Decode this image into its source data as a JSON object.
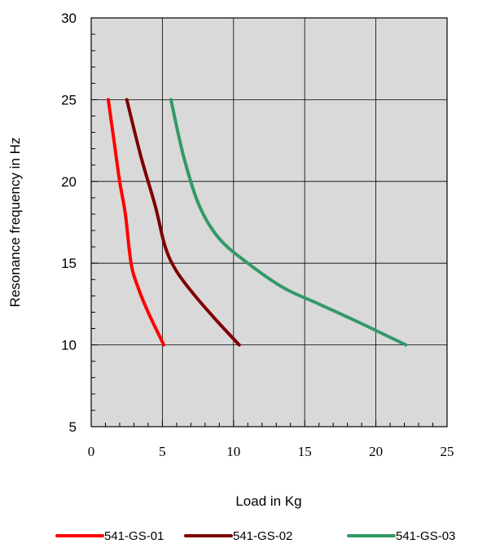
{
  "chart_data": {
    "type": "line",
    "title": "",
    "xlabel": "Load in Kg",
    "ylabel": "Resonance frequency in Hz",
    "xlim": [
      0,
      25
    ],
    "ylim": [
      5,
      30
    ],
    "xticks": [
      "0",
      "5",
      "10",
      "15",
      "20",
      "25"
    ],
    "yticks": [
      "5",
      "10",
      "15",
      "20",
      "25",
      "30"
    ],
    "grid": true,
    "plot_background": "#d9d9d9",
    "legend_position": "bottom",
    "series": [
      {
        "name": "541-GS-01",
        "color": "#ff0000",
        "points": [
          [
            1.2,
            25
          ],
          [
            1.6,
            22.5
          ],
          [
            2.0,
            20
          ],
          [
            2.4,
            18
          ],
          [
            2.8,
            15
          ],
          [
            3.3,
            13.5
          ],
          [
            4.0,
            12
          ],
          [
            5.1,
            10
          ]
        ]
      },
      {
        "name": "541-GS-02",
        "color": "#7f0000",
        "points": [
          [
            2.5,
            25
          ],
          [
            3.5,
            21.5
          ],
          [
            4.5,
            18.5
          ],
          [
            5.2,
            16
          ],
          [
            6.0,
            14.5
          ],
          [
            7.3,
            13
          ],
          [
            8.8,
            11.5
          ],
          [
            10.4,
            10
          ]
        ]
      },
      {
        "name": "541-GS-03",
        "color": "#339966",
        "points": [
          [
            5.6,
            25
          ],
          [
            6.5,
            21.5
          ],
          [
            7.6,
            18.5
          ],
          [
            9.0,
            16.5
          ],
          [
            11.0,
            15
          ],
          [
            13.5,
            13.5
          ],
          [
            16.0,
            12.5
          ],
          [
            19.0,
            11.3
          ],
          [
            22.1,
            10
          ]
        ]
      }
    ]
  }
}
